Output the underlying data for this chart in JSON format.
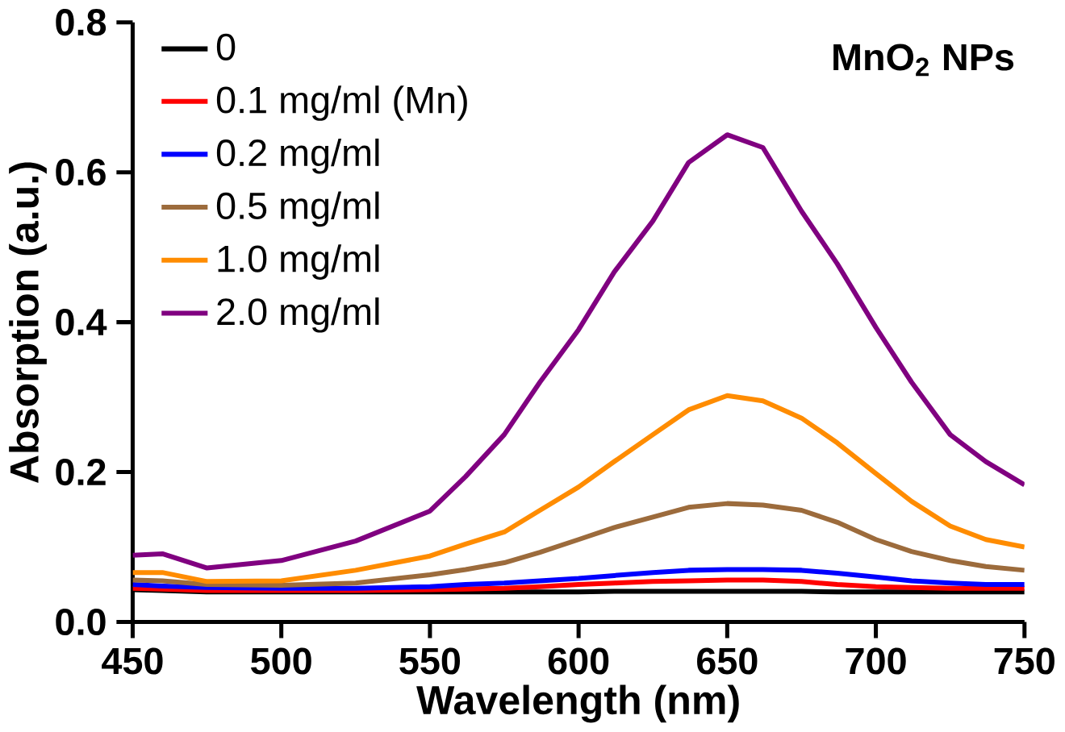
{
  "chart_data": {
    "type": "line",
    "xlabel": "Wavelength (nm)",
    "ylabel": "Absorption (a.u.)",
    "annotations": [
      "MnO$_{2}$ NPs"
    ],
    "x": [
      450,
      460,
      475,
      500,
      525,
      550,
      562,
      575,
      587,
      600,
      612,
      625,
      637,
      650,
      662,
      675,
      687,
      700,
      712,
      725,
      737,
      750
    ],
    "series": [
      {
        "name": "0",
        "color": "#000000",
        "values": [
          0.043,
          0.042,
          0.04,
          0.04,
          0.04,
          0.04,
          0.04,
          0.04,
          0.04,
          0.04,
          0.041,
          0.041,
          0.041,
          0.041,
          0.041,
          0.041,
          0.04,
          0.04,
          0.04,
          0.04,
          0.04,
          0.04
        ]
      },
      {
        "name": "0.1 mg/ml (Mn)",
        "color": "#ff0000",
        "values": [
          0.045,
          0.044,
          0.042,
          0.042,
          0.042,
          0.043,
          0.044,
          0.045,
          0.047,
          0.05,
          0.052,
          0.054,
          0.055,
          0.056,
          0.056,
          0.054,
          0.05,
          0.047,
          0.046,
          0.045,
          0.045,
          0.045
        ]
      },
      {
        "name": "0.2 mg/ml",
        "color": "#0000ff",
        "values": [
          0.05,
          0.048,
          0.046,
          0.045,
          0.045,
          0.047,
          0.05,
          0.052,
          0.055,
          0.058,
          0.062,
          0.066,
          0.069,
          0.07,
          0.07,
          0.069,
          0.065,
          0.06,
          0.055,
          0.052,
          0.05,
          0.05
        ]
      },
      {
        "name": "0.5 mg/ml",
        "color": "#9c6b3c",
        "values": [
          0.056,
          0.055,
          0.05,
          0.049,
          0.052,
          0.063,
          0.07,
          0.079,
          0.093,
          0.11,
          0.126,
          0.14,
          0.153,
          0.158,
          0.156,
          0.149,
          0.133,
          0.11,
          0.094,
          0.082,
          0.074,
          0.069
        ]
      },
      {
        "name": "1.0 mg/ml",
        "color": "#ff8c00",
        "values": [
          0.066,
          0.066,
          0.054,
          0.055,
          0.069,
          0.088,
          0.104,
          0.12,
          0.149,
          0.18,
          0.214,
          0.25,
          0.283,
          0.302,
          0.295,
          0.272,
          0.239,
          0.198,
          0.161,
          0.128,
          0.11,
          0.1
        ]
      },
      {
        "name": "2.0 mg/ml",
        "color": "#800080",
        "values": [
          0.089,
          0.091,
          0.072,
          0.082,
          0.108,
          0.148,
          0.194,
          0.25,
          0.32,
          0.39,
          0.467,
          0.535,
          0.613,
          0.65,
          0.633,
          0.548,
          0.478,
          0.393,
          0.32,
          0.25,
          0.214,
          0.183
        ]
      }
    ],
    "xlim": [
      450,
      750
    ],
    "xticks": [
      450,
      500,
      550,
      600,
      650,
      700,
      750
    ],
    "ylim": [
      0,
      0.8
    ],
    "yticks": [
      {
        "value": 0,
        "label": "0.0"
      },
      0.2,
      0.4,
      0.6,
      0.8
    ],
    "legend": "top left",
    "marker": "none",
    "line_style": "solid",
    "grid": false
  }
}
